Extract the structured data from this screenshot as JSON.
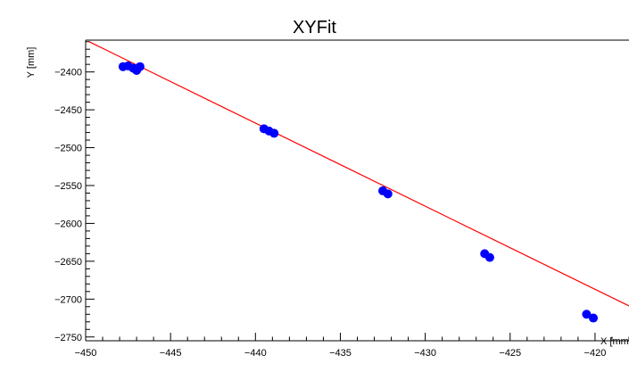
{
  "chart_data": {
    "type": "scatter",
    "title": "XYFit",
    "xlabel": "X [mm]",
    "ylabel": "Y [mm]",
    "xlim": [
      -450,
      -418
    ],
    "ylim": [
      -2755,
      -2358
    ],
    "grid": false,
    "x_ticks": [
      -450,
      -445,
      -440,
      -435,
      -430,
      -425,
      -420
    ],
    "y_ticks": [
      -2400,
      -2450,
      -2500,
      -2550,
      -2600,
      -2650,
      -2700,
      -2750
    ],
    "x_tick_labels": [
      "−450",
      "−445",
      "−440",
      "−435",
      "−430",
      "−425",
      "−420"
    ],
    "y_tick_labels": [
      "−2400",
      "−2450",
      "−2500",
      "−2550",
      "−2600",
      "−2650",
      "−2700",
      "−2750"
    ],
    "series": [
      {
        "marker_color": "#0000ff",
        "points": [
          {
            "x": -447.8,
            "y": -2393
          },
          {
            "x": -447.5,
            "y": -2392
          },
          {
            "x": -447.2,
            "y": -2395
          },
          {
            "x": -447.0,
            "y": -2398
          },
          {
            "x": -446.8,
            "y": -2393
          },
          {
            "x": -439.5,
            "y": -2475
          },
          {
            "x": -439.2,
            "y": -2478
          },
          {
            "x": -438.9,
            "y": -2481
          },
          {
            "x": -432.5,
            "y": -2557
          },
          {
            "x": -432.2,
            "y": -2561
          },
          {
            "x": -426.5,
            "y": -2640
          },
          {
            "x": -426.2,
            "y": -2645
          },
          {
            "x": -420.5,
            "y": -2720
          },
          {
            "x": -420.1,
            "y": -2725
          }
        ]
      }
    ],
    "fit_line": {
      "color": "#ff0000",
      "points": [
        {
          "x": -449.8,
          "y": -2360
        },
        {
          "x": -418.0,
          "y": -2709
        }
      ]
    }
  }
}
